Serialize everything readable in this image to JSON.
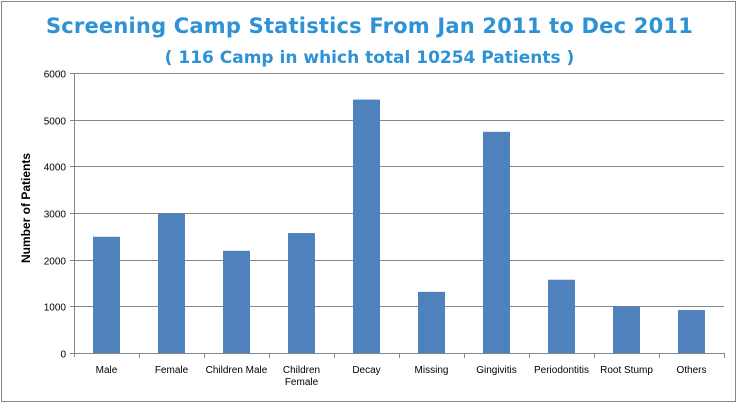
{
  "chart_data": {
    "type": "bar",
    "title": "Screening Camp Statistics From Jan 2011 to Dec 2011",
    "subtitle": "( 116 Camp in which total 10254 Patients )",
    "xlabel": "",
    "ylabel": "Number of Patients",
    "categories": [
      "Male",
      "Female",
      "Children Male",
      "Children Female",
      "Decay",
      "Missing",
      "Gingivitis",
      "Periodontitis",
      "Root Stump",
      "Others"
    ],
    "category_lines": [
      [
        "Male"
      ],
      [
        "Female"
      ],
      [
        "Children Male"
      ],
      [
        "Children",
        "Female"
      ],
      [
        "Decay"
      ],
      [
        "Missing"
      ],
      [
        "Gingivitis"
      ],
      [
        "Periodontitis"
      ],
      [
        "Root Stump"
      ],
      [
        "Others"
      ]
    ],
    "values": [
      2490,
      2990,
      2190,
      2570,
      5430,
      1310,
      4740,
      1570,
      1000,
      920
    ],
    "ylim": [
      0,
      6000
    ],
    "yticks": [
      0,
      1000,
      2000,
      3000,
      4000,
      5000,
      6000
    ],
    "grid": true,
    "legend": "none",
    "bar_color": "#4f81bd",
    "gridline_color": "#868686",
    "title_color": "#2e93d6"
  }
}
